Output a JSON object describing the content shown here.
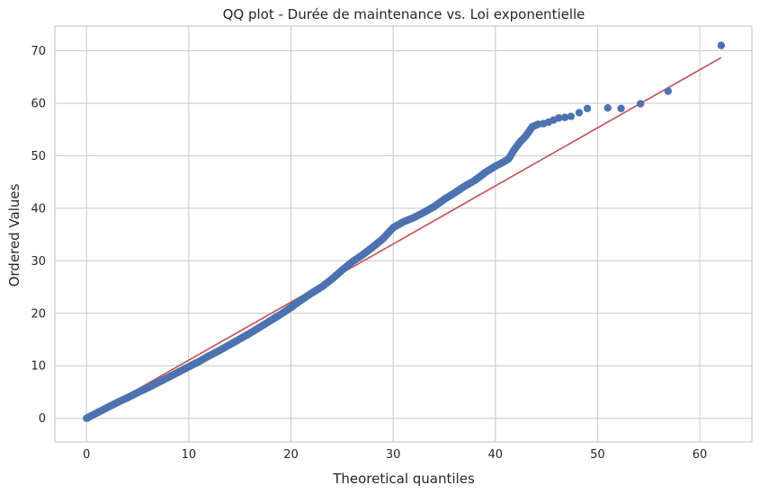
{
  "chart_data": {
    "type": "scatter",
    "title": "QQ plot - Durée de maintenance vs. Loi exponentielle",
    "xlabel": "Theoretical quantiles",
    "ylabel": "Ordered Values",
    "xlim": [
      -3.1,
      65.1
    ],
    "ylim": [
      -4.5,
      74.7
    ],
    "xticks": [
      0,
      10,
      20,
      30,
      40,
      50,
      60
    ],
    "yticks": [
      0,
      10,
      20,
      30,
      40,
      50,
      60,
      70
    ],
    "grid": true,
    "legend": "none",
    "colors": {
      "points": "#4c72b0",
      "fit_line": "#c44e52",
      "grid": "#cccccc",
      "axes_edge": "#cccccc"
    },
    "fit_line": {
      "name": "",
      "x": [
        0.0,
        62.1
      ],
      "y": [
        0.0,
        68.7
      ]
    },
    "series": [
      {
        "name": "",
        "x": [
          0.0,
          0.5,
          1.0,
          2.0,
          3.0,
          4.0,
          5.0,
          6.0,
          7.0,
          8.0,
          9.0,
          10.0,
          11.0,
          12.0,
          13.0,
          14.0,
          15.0,
          16.0,
          17.0,
          18.0,
          19.0,
          20.0,
          21.0,
          22.0,
          23.0,
          24.0,
          25.0,
          26.0,
          27.0,
          28.0,
          29.0,
          30.0,
          31.0,
          32.0,
          33.0,
          34.0,
          35.0,
          36.0,
          37.0,
          38.0,
          39.0,
          40.0,
          40.7,
          41.3,
          41.8,
          42.4,
          43.0,
          43.6,
          44.2,
          44.7,
          45.2,
          45.7,
          46.2,
          46.8,
          47.4,
          48.2,
          49.0,
          51.0,
          52.3,
          54.2,
          56.9,
          62.1
        ],
        "y": [
          0.0,
          0.5,
          1.0,
          2.0,
          3.0,
          3.9,
          4.9,
          5.8,
          6.8,
          7.8,
          8.8,
          9.8,
          10.8,
          11.9,
          12.9,
          14.0,
          15.1,
          16.2,
          17.4,
          18.6,
          19.8,
          21.1,
          22.5,
          23.8,
          25.0,
          26.5,
          28.2,
          29.8,
          31.1,
          32.6,
          34.2,
          36.3,
          37.4,
          38.2,
          39.2,
          40.3,
          41.7,
          42.9,
          44.2,
          45.3,
          46.8,
          48.0,
          48.7,
          49.4,
          51.0,
          52.6,
          53.8,
          55.5,
          56.0,
          56.1,
          56.4,
          56.8,
          57.2,
          57.3,
          57.5,
          58.2,
          59.0,
          59.1,
          59.0,
          59.9,
          62.3,
          71.0
        ]
      }
    ]
  }
}
